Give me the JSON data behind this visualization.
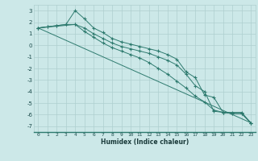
{
  "line1": {
    "x": [
      0,
      1,
      2,
      3,
      4,
      5,
      6,
      7,
      8,
      9,
      10,
      11,
      12,
      13,
      14,
      15,
      16,
      17,
      18,
      19,
      20,
      21,
      22,
      23
    ],
    "y": [
      1.5,
      1.6,
      1.7,
      1.8,
      3.0,
      2.3,
      1.5,
      1.1,
      0.6,
      0.3,
      0.1,
      -0.1,
      -0.3,
      -0.5,
      -0.8,
      -1.2,
      -2.3,
      -2.8,
      -4.3,
      -4.5,
      -5.8,
      -5.9,
      -5.9,
      -6.7
    ]
  },
  "line2": {
    "x": [
      0,
      1,
      2,
      3,
      4,
      5,
      6,
      7,
      8,
      9,
      10,
      11,
      12,
      13,
      14,
      15,
      16,
      17,
      18,
      19,
      20,
      21,
      22,
      23
    ],
    "y": [
      1.5,
      1.6,
      1.7,
      1.8,
      1.8,
      1.5,
      1.0,
      0.6,
      0.2,
      -0.1,
      -0.3,
      -0.5,
      -0.7,
      -1.0,
      -1.3,
      -1.7,
      -2.5,
      -3.5,
      -4.0,
      -5.7,
      -5.8,
      -5.8,
      -5.8,
      -6.7
    ]
  },
  "line3": {
    "x": [
      0,
      4,
      5,
      6,
      7,
      8,
      9,
      10,
      11,
      12,
      13,
      14,
      15,
      16,
      17,
      18,
      19,
      20,
      21,
      22,
      23
    ],
    "y": [
      1.5,
      1.8,
      1.2,
      0.7,
      0.2,
      -0.2,
      -0.5,
      -0.8,
      -1.1,
      -1.5,
      -2.0,
      -2.5,
      -3.1,
      -3.7,
      -4.4,
      -4.9,
      -5.6,
      -5.8,
      -5.9,
      -5.9,
      -6.7
    ]
  },
  "line4": {
    "x": [
      0,
      23
    ],
    "y": [
      1.5,
      -6.7
    ]
  },
  "color": "#2d7a6e",
  "bg_color": "#cce8e8",
  "grid_color": "#aecfcf",
  "xlabel": "Humidex (Indice chaleur)",
  "ylim": [
    -7.5,
    3.5
  ],
  "xlim": [
    -0.5,
    23.5
  ],
  "yticks": [
    -7,
    -6,
    -5,
    -4,
    -3,
    -2,
    -1,
    0,
    1,
    2,
    3
  ],
  "xticks": [
    0,
    1,
    2,
    3,
    4,
    5,
    6,
    7,
    8,
    9,
    10,
    11,
    12,
    13,
    14,
    15,
    16,
    17,
    18,
    19,
    20,
    21,
    22,
    23
  ]
}
